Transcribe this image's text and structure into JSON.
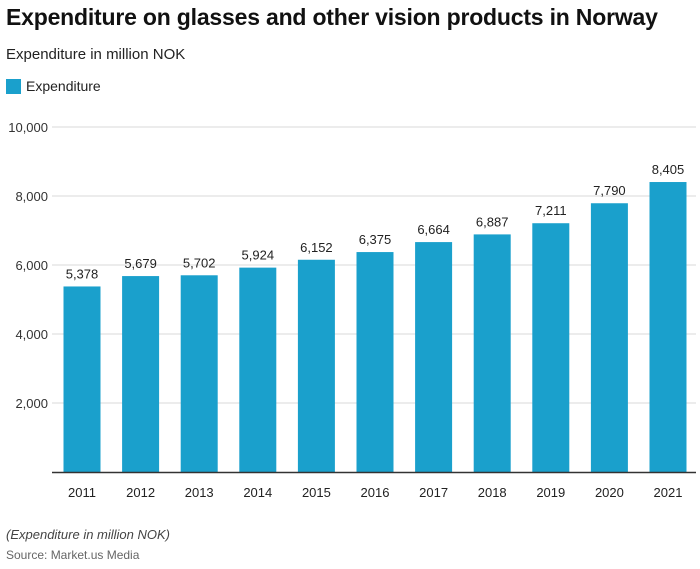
{
  "header": {
    "title": "Expenditure on glasses and other vision products in Norway",
    "subtitle": "Expenditure in million NOK"
  },
  "footer": {
    "note": "(Expenditure in million NOK)",
    "source": "Source: Market.us Media"
  },
  "colors": {
    "bar": "#1aa0cc",
    "grid": "#d9d9d9",
    "axis": "#333333"
  },
  "chart_data": {
    "type": "bar",
    "categories": [
      "2011",
      "2012",
      "2013",
      "2014",
      "2015",
      "2016",
      "2017",
      "2018",
      "2019",
      "2020",
      "2021"
    ],
    "series": [
      {
        "name": "Expenditure",
        "values": [
          5378,
          5679,
          5702,
          5924,
          6152,
          6375,
          6664,
          6887,
          7211,
          7790,
          8405
        ],
        "labels": [
          "5,378",
          "5,679",
          "5,702",
          "5,924",
          "6,152",
          "6,375",
          "6,664",
          "6,887",
          "7,211",
          "7,790",
          "8,405"
        ]
      }
    ],
    "title": "Expenditure on glasses and other vision products in Norway",
    "ylim": [
      0,
      10000
    ],
    "yticks": [
      2000,
      4000,
      6000,
      8000,
      10000
    ],
    "ytick_labels": [
      "2,000",
      "4,000",
      "6,000",
      "8,000",
      "10,000"
    ],
    "grid": true,
    "legend": "top-left"
  }
}
